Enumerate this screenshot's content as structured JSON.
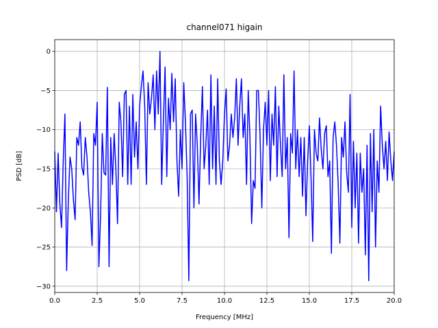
{
  "chart_data": {
    "type": "line",
    "title": "channel071 higain",
    "xlabel": "Frequency [MHz]",
    "ylabel": "PSD [dB]",
    "color": "#0000ff",
    "grid": true,
    "xlim": [
      0,
      20
    ],
    "ylim": [
      -30.8,
      1.5
    ],
    "xticks": [
      {
        "value": 0,
        "label": "0.0"
      },
      {
        "value": 2.5,
        "label": "2.5"
      },
      {
        "value": 5,
        "label": "5.0"
      },
      {
        "value": 7.5,
        "label": "7.5"
      },
      {
        "value": 10,
        "label": "10.0"
      },
      {
        "value": 12.5,
        "label": "12.5"
      },
      {
        "value": 15,
        "label": "15.0"
      },
      {
        "value": 17.5,
        "label": "17.5"
      },
      {
        "value": 20,
        "label": "20.0"
      }
    ],
    "yticks": [
      {
        "value": -30,
        "label": "−30"
      },
      {
        "value": -25,
        "label": "−25"
      },
      {
        "value": -20,
        "label": "−20"
      },
      {
        "value": -15,
        "label": "−15"
      },
      {
        "value": -10,
        "label": "−10"
      },
      {
        "value": -5,
        "label": "−5"
      },
      0
    ],
    "x": [
      0.0,
      0.1,
      0.2,
      0.3,
      0.4,
      0.5,
      0.6,
      0.7,
      0.8,
      0.9,
      1.0,
      1.1,
      1.2,
      1.3,
      1.4,
      1.5,
      1.6,
      1.7,
      1.8,
      1.9,
      2.0,
      2.1,
      2.2,
      2.3,
      2.4,
      2.5,
      2.6,
      2.7,
      2.8,
      2.9,
      3.0,
      3.1,
      3.2,
      3.3,
      3.4,
      3.5,
      3.6,
      3.7,
      3.8,
      3.9,
      4.0,
      4.1,
      4.2,
      4.3,
      4.4,
      4.5,
      4.6,
      4.7,
      4.8,
      4.9,
      5.0,
      5.1,
      5.2,
      5.3,
      5.4,
      5.5,
      5.6,
      5.7,
      5.8,
      5.9,
      6.0,
      6.1,
      6.2,
      6.3,
      6.4,
      6.5,
      6.6,
      6.7,
      6.8,
      6.9,
      7.0,
      7.1,
      7.2,
      7.3,
      7.4,
      7.5,
      7.6,
      7.7,
      7.8,
      7.9,
      8.0,
      8.1,
      8.2,
      8.3,
      8.4,
      8.5,
      8.6,
      8.7,
      8.8,
      8.9,
      9.0,
      9.1,
      9.2,
      9.3,
      9.4,
      9.5,
      9.6,
      9.7,
      9.8,
      9.9,
      10.0,
      10.1,
      10.2,
      10.3,
      10.4,
      10.5,
      10.6,
      10.7,
      10.8,
      10.9,
      11.0,
      11.1,
      11.2,
      11.3,
      11.4,
      11.5,
      11.6,
      11.7,
      11.8,
      11.9,
      12.0,
      12.1,
      12.2,
      12.3,
      12.4,
      12.5,
      12.6,
      12.7,
      12.8,
      12.9,
      13.0,
      13.1,
      13.2,
      13.3,
      13.4,
      13.5,
      13.6,
      13.7,
      13.8,
      13.9,
      14.0,
      14.1,
      14.2,
      14.3,
      14.4,
      14.5,
      14.6,
      14.7,
      14.8,
      14.9,
      15.0,
      15.1,
      15.2,
      15.3,
      15.4,
      15.5,
      15.6,
      15.7,
      15.8,
      15.9,
      16.0,
      16.1,
      16.2,
      16.3,
      16.4,
      16.5,
      16.6,
      16.7,
      16.8,
      16.9,
      17.0,
      17.1,
      17.2,
      17.3,
      17.4,
      17.5,
      17.6,
      17.7,
      17.8,
      17.9,
      18.0,
      18.1,
      18.2,
      18.3,
      18.4,
      18.5,
      18.6,
      18.7,
      18.8,
      18.9,
      19.0,
      19.1,
      19.2,
      19.3,
      19.4,
      19.5,
      19.6,
      19.7,
      19.8,
      19.9,
      20.0
    ],
    "values": [
      -12.8,
      -20.5,
      -13,
      -19.5,
      -22.5,
      -14,
      -8,
      -28,
      -19,
      -13.5,
      -15,
      -19,
      -21.5,
      -11,
      -12,
      -9,
      -14.8,
      -15.8,
      -11,
      -13.5,
      -18,
      -20.5,
      -24.8,
      -10.5,
      -12,
      -6.5,
      -27.5,
      -21,
      -10.5,
      -15.5,
      -15.8,
      -4.6,
      -27.5,
      -11,
      -17,
      -10.5,
      -15,
      -22,
      -6.5,
      -9,
      -16,
      -5.5,
      -5,
      -17,
      -7,
      -17,
      -5.5,
      -13.5,
      -9,
      -15,
      -7,
      -4.5,
      -2.5,
      -7,
      -17,
      -4,
      -8,
      -6,
      -3,
      -10,
      -2.5,
      -8,
      0,
      -17,
      -9,
      -2,
      -16,
      -6,
      -10,
      -2.8,
      -9,
      -3.5,
      -14,
      -18.5,
      -10,
      -15,
      -4,
      -9,
      -16,
      -29.3,
      -8,
      -7.5,
      -20,
      -8,
      -12,
      -19.5,
      -11,
      -4.5,
      -15,
      -12,
      -7.5,
      -17,
      -3,
      -15,
      -7,
      -17,
      -3.5,
      -14,
      -17,
      -14,
      -8,
      -4.8,
      -14,
      -12,
      -8,
      -11,
      -8.5,
      -3.5,
      -12,
      -7,
      -3.5,
      -11,
      -8,
      -17,
      -5,
      -11,
      -22,
      -16.5,
      -17.5,
      -5,
      -5,
      -11,
      -20,
      -10,
      -6.5,
      -12,
      -5,
      -16.5,
      -8,
      -12,
      -4.5,
      -16,
      -7,
      -12,
      -16,
      -3,
      -15,
      -11,
      -23.8,
      -10.5,
      -13,
      -2.5,
      -15,
      -10,
      -16,
      -11,
      -18.5,
      -11,
      -21,
      -14,
      -9.5,
      -16,
      -24.3,
      -10,
      -13,
      -14,
      -8.5,
      -12.5,
      -15,
      -10.5,
      -9.5,
      -16,
      -14,
      -25.8,
      -11,
      -9,
      -12,
      -17,
      -24.5,
      -11,
      -13.5,
      -9,
      -15.5,
      -18,
      -5.5,
      -22.5,
      -11.5,
      -20,
      -13,
      -24.5,
      -13,
      -18,
      -15,
      -26,
      -12,
      -29.3,
      -10.5,
      -20.5,
      -10,
      -25,
      -14,
      -18,
      -7,
      -12,
      -15,
      -11.5,
      -16.5,
      -10.3,
      -14,
      -16.5,
      -12.8
    ]
  }
}
